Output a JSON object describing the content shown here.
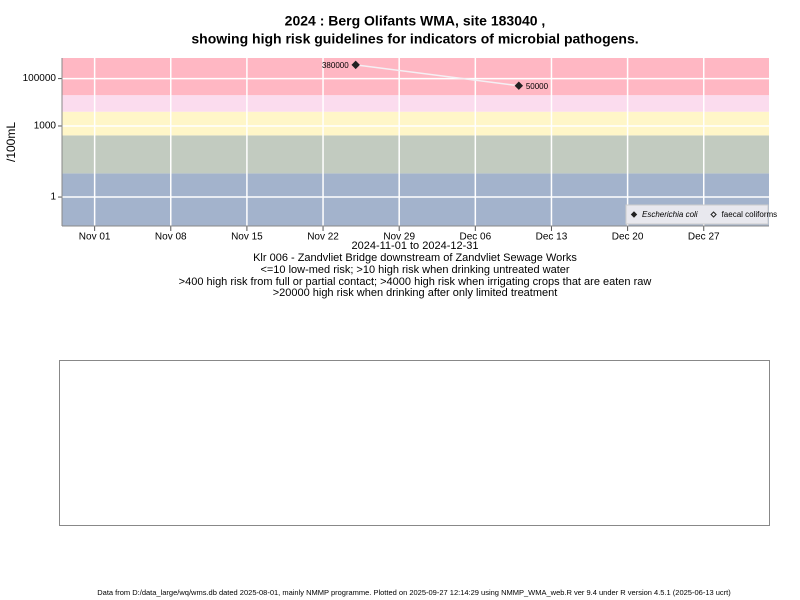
{
  "chart_data": {
    "type": "scatter",
    "title": "2024 : Berg Olifants WMA, site 183040 ,",
    "subtitle": "showing high risk guidelines for indicators of microbial pathogens.",
    "y_label": "/100mL",
    "x_label": "2024-11-01 to 2024-12-31",
    "notes": [
      "Klr 006 - Zandvliet Bridge downstream of Zandvliet Sewage Works",
      "<=10 low-med risk; >10 high risk when drinking untreated water",
      ">400 high risk from full or partial contact; >4000 high risk when irrigating crops that are eaten raw",
      ">20000 high risk when drinking after only limited treatment"
    ],
    "footer": "Data from D:/data_large/wq/wms.db dated 2025-08-01, mainly NMMP programme. Plotted on 2025-09-27 12:14:29 using NMMP_WMA_web.R ver 9.4 under R version 4.5.1 (2025-06-13 ucrt)",
    "log_y": true,
    "grid": true,
    "legend_position": "bottom-right",
    "x": [
      "2024-11-25",
      "2024-12-10"
    ],
    "series": [
      {
        "name": "Escherichia coli",
        "color": "#222222",
        "line_color": "#f4f0f4",
        "values": [
          380000,
          50000
        ]
      },
      {
        "name": "faecal coliforms",
        "color": "#222222",
        "values": [
          null,
          null
        ]
      }
    ],
    "thresholds": [
      10,
      400,
      4000,
      20000
    ],
    "band_colors": [
      "#a3b3cc",
      "#c2cbc0",
      "#fff6c8",
      "#fbdcee",
      "#ffb7c3"
    ],
    "xlim": [
      "2024-10-29",
      "2025-01-02"
    ],
    "xticks": [
      {
        "value": "2024-11-01",
        "label": "Nov 01"
      },
      {
        "value": "2024-11-08",
        "label": "Nov 08"
      },
      {
        "value": "2024-11-15",
        "label": "Nov 15"
      },
      {
        "value": "2024-11-22",
        "label": "Nov 22"
      },
      {
        "value": "2024-11-29",
        "label": "Nov 29"
      },
      {
        "value": "2024-12-06",
        "label": "Dec 06"
      },
      {
        "value": "2024-12-13",
        "label": "Dec 13"
      },
      {
        "value": "2024-12-20",
        "label": "Dec 20"
      },
      {
        "value": "2024-12-27",
        "label": "Dec 27"
      }
    ],
    "ylim": [
      0.06,
      740000
    ],
    "yticks": [
      1,
      1000,
      100000
    ]
  }
}
